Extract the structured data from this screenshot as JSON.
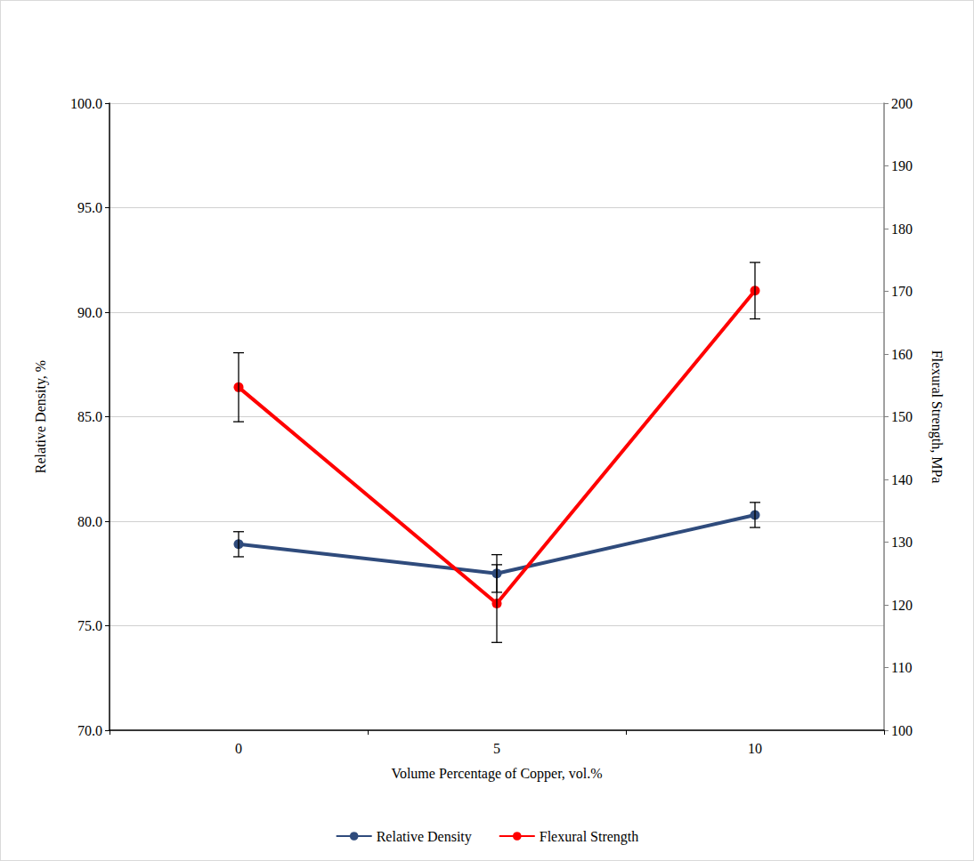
{
  "chart_data": {
    "type": "line",
    "x_label": "Volume Percentage of Copper, vol.%",
    "y_label": "Relative Density, %",
    "y2_label": "Flexural Strength, MPa",
    "categories": [
      "0",
      "5",
      "10"
    ],
    "series": [
      {
        "name": "Relative Density",
        "color": "#2f4b7c",
        "values": [
          78.9,
          77.5,
          80.3
        ],
        "errors": [
          0.6,
          0.9,
          0.6
        ]
      },
      {
        "name": "Flexural Strength",
        "color": "#ff0000",
        "axis": "y2",
        "values": [
          154.7,
          120.2,
          170.1
        ],
        "errors": [
          5.5,
          6.2,
          4.5
        ]
      }
    ],
    "ylim": [
      70,
      100
    ],
    "yticks": [
      {
        "value": 70,
        "label": "70.0"
      },
      {
        "value": 75,
        "label": "75.0"
      },
      {
        "value": 80,
        "label": "80.0"
      },
      {
        "value": 85,
        "label": "85.0"
      },
      {
        "value": 90,
        "label": "90.0"
      },
      {
        "value": 95,
        "label": "95.0"
      },
      {
        "value": 100,
        "label": "100.0"
      }
    ],
    "y2lim": [
      100,
      200
    ],
    "y2ticks": [
      100,
      110,
      120,
      130,
      140,
      150,
      160,
      170,
      180,
      190,
      200
    ],
    "grid": true,
    "legend": "bottom",
    "marker": "circle"
  }
}
